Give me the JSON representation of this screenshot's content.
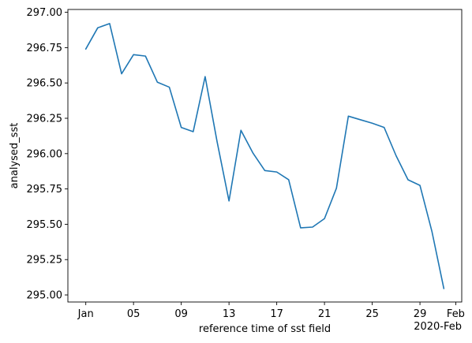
{
  "chart_data": {
    "type": "line",
    "xlabel": "reference time of sst field",
    "ylabel": "analysed_sst",
    "x_offset_label": "2020-Feb",
    "x": [
      "2020-01-01",
      "2020-01-02",
      "2020-01-03",
      "2020-01-04",
      "2020-01-05",
      "2020-01-06",
      "2020-01-07",
      "2020-01-08",
      "2020-01-09",
      "2020-01-10",
      "2020-01-11",
      "2020-01-12",
      "2020-01-13",
      "2020-01-14",
      "2020-01-15",
      "2020-01-16",
      "2020-01-17",
      "2020-01-18",
      "2020-01-19",
      "2020-01-20",
      "2020-01-21",
      "2020-01-22",
      "2020-01-23",
      "2020-01-24",
      "2020-01-25",
      "2020-01-26",
      "2020-01-27",
      "2020-01-28",
      "2020-01-29",
      "2020-01-30",
      "2020-01-31"
    ],
    "series": [
      {
        "color": "#1f77b4",
        "values": [
          296.74,
          296.89,
          296.92,
          296.565,
          296.7,
          296.69,
          296.505,
          296.47,
          296.185,
          296.155,
          296.545,
          296.085,
          295.665,
          296.165,
          296.005,
          295.88,
          295.87,
          295.815,
          295.475,
          295.48,
          295.54,
          295.755,
          296.265,
          296.24,
          296.215,
          296.185,
          295.985,
          295.815,
          295.775,
          295.45,
          295.045
        ]
      }
    ],
    "xticks": [
      {
        "date": "2020-01-01",
        "label": "Jan"
      },
      {
        "date": "2020-01-05",
        "label": "05"
      },
      {
        "date": "2020-01-09",
        "label": "09"
      },
      {
        "date": "2020-01-13",
        "label": "13"
      },
      {
        "date": "2020-01-17",
        "label": "17"
      },
      {
        "date": "2020-01-21",
        "label": "21"
      },
      {
        "date": "2020-01-25",
        "label": "25"
      },
      {
        "date": "2020-01-29",
        "label": "29"
      },
      {
        "date": "2020-02-01",
        "label": "Feb"
      }
    ],
    "yticks": [
      295.0,
      295.25,
      295.5,
      295.75,
      296.0,
      296.25,
      296.5,
      296.75,
      297.0
    ],
    "ytick_labels": [
      "295.00",
      "295.25",
      "295.50",
      "295.75",
      "296.00",
      "296.25",
      "296.50",
      "296.75",
      "297.00"
    ],
    "xlim": [
      "2019-12-30T12:00",
      "2020-02-01T12:00"
    ],
    "ylim": [
      294.95,
      297.02
    ],
    "grid": false,
    "legend": "none"
  }
}
